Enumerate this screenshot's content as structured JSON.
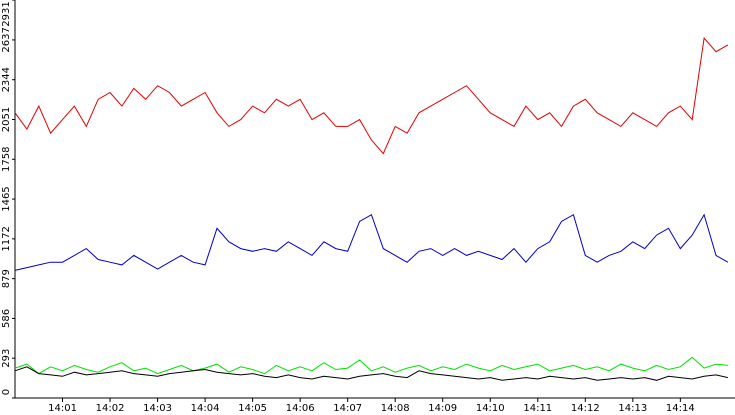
{
  "chart_data": {
    "type": "line",
    "x": [
      840,
      840.25,
      840.5,
      840.75,
      841,
      841.25,
      841.5,
      841.75,
      842,
      842.25,
      842.5,
      842.75,
      843,
      843.25,
      843.5,
      843.75,
      844,
      844.25,
      844.5,
      844.75,
      845,
      845.25,
      845.5,
      845.75,
      846,
      846.25,
      846.5,
      846.75,
      847,
      847.25,
      847.5,
      847.75,
      848,
      848.25,
      848.5,
      848.75,
      849,
      849.25,
      849.5,
      849.75,
      850,
      850.25,
      850.5,
      850.75,
      851,
      851.25,
      851.5,
      851.75,
      852,
      852.25,
      852.5,
      852.75,
      853,
      853.25,
      853.5,
      853.75,
      854,
      854.25,
      854.5,
      854.75,
      855
    ],
    "series": [
      {
        "color": "#e00000",
        "values": [
          2100,
          1980,
          2150,
          1950,
          2050,
          2150,
          2000,
          2200,
          2250,
          2150,
          2280,
          2200,
          2300,
          2250,
          2150,
          2200,
          2250,
          2100,
          2000,
          2050,
          2150,
          2100,
          2200,
          2150,
          2200,
          2050,
          2100,
          2000,
          2000,
          2050,
          1900,
          1800,
          2000,
          1950,
          2100,
          2150,
          2200,
          2250,
          2300,
          2200,
          2100,
          2050,
          2000,
          2150,
          2050,
          2100,
          2000,
          2150,
          2200,
          2100,
          2050,
          2000,
          2100,
          2050,
          2000,
          2100,
          2150,
          2050,
          2650,
          2550,
          2600
        ]
      },
      {
        "color": "#0000c8",
        "values": [
          940,
          960,
          980,
          1000,
          1000,
          1050,
          1100,
          1020,
          1000,
          980,
          1050,
          1000,
          950,
          1000,
          1050,
          1000,
          980,
          1250,
          1150,
          1100,
          1080,
          1100,
          1080,
          1150,
          1100,
          1050,
          1150,
          1100,
          1080,
          1300,
          1350,
          1100,
          1050,
          1000,
          1080,
          1100,
          1050,
          1100,
          1050,
          1080,
          1050,
          1020,
          1100,
          1000,
          1100,
          1150,
          1300,
          1350,
          1050,
          1000,
          1050,
          1080,
          1150,
          1100,
          1200,
          1250,
          1100,
          1200,
          1350,
          1050,
          1000
        ]
      },
      {
        "color": "#00e000",
        "values": [
          220,
          250,
          180,
          230,
          200,
          240,
          210,
          190,
          230,
          260,
          200,
          220,
          180,
          210,
          240,
          200,
          220,
          250,
          190,
          230,
          210,
          180,
          240,
          200,
          230,
          200,
          260,
          210,
          220,
          280,
          200,
          230,
          190,
          220,
          240,
          200,
          230,
          210,
          250,
          220,
          200,
          240,
          210,
          230,
          250,
          200,
          220,
          240,
          210,
          230,
          200,
          250,
          220,
          200,
          240,
          210,
          230,
          300,
          220,
          250,
          240
        ]
      },
      {
        "color": "#000000",
        "values": [
          200,
          230,
          180,
          170,
          160,
          190,
          170,
          180,
          190,
          200,
          180,
          170,
          160,
          180,
          190,
          200,
          210,
          190,
          180,
          170,
          180,
          160,
          150,
          170,
          150,
          140,
          160,
          150,
          140,
          160,
          170,
          180,
          160,
          150,
          200,
          180,
          170,
          160,
          150,
          140,
          150,
          130,
          140,
          150,
          140,
          160,
          150,
          140,
          150,
          130,
          140,
          150,
          140,
          150,
          130,
          160,
          150,
          140,
          160,
          170,
          150
        ]
      }
    ],
    "xlim": [
      840,
      855.15
    ],
    "xticks": [
      {
        "value": 841,
        "label": "14:01"
      },
      {
        "value": 842,
        "label": "14:02"
      },
      {
        "value": 843,
        "label": "14:03"
      },
      {
        "value": 844,
        "label": "14:04"
      },
      {
        "value": 845,
        "label": "14:05"
      },
      {
        "value": 846,
        "label": "14:06"
      },
      {
        "value": 847,
        "label": "14:07"
      },
      {
        "value": 848,
        "label": "14:08"
      },
      {
        "value": 849,
        "label": "14:09"
      },
      {
        "value": 850,
        "label": "14:10"
      },
      {
        "value": 851,
        "label": "14:11"
      },
      {
        "value": 852,
        "label": "14:12"
      },
      {
        "value": 853,
        "label": "14:13"
      },
      {
        "value": 854,
        "label": "14:14"
      }
    ],
    "ylim": [
      0,
      2931
    ],
    "yticks": [
      0,
      293,
      586,
      879,
      1172,
      1465,
      1758,
      2051,
      2344,
      2637,
      2931
    ]
  }
}
